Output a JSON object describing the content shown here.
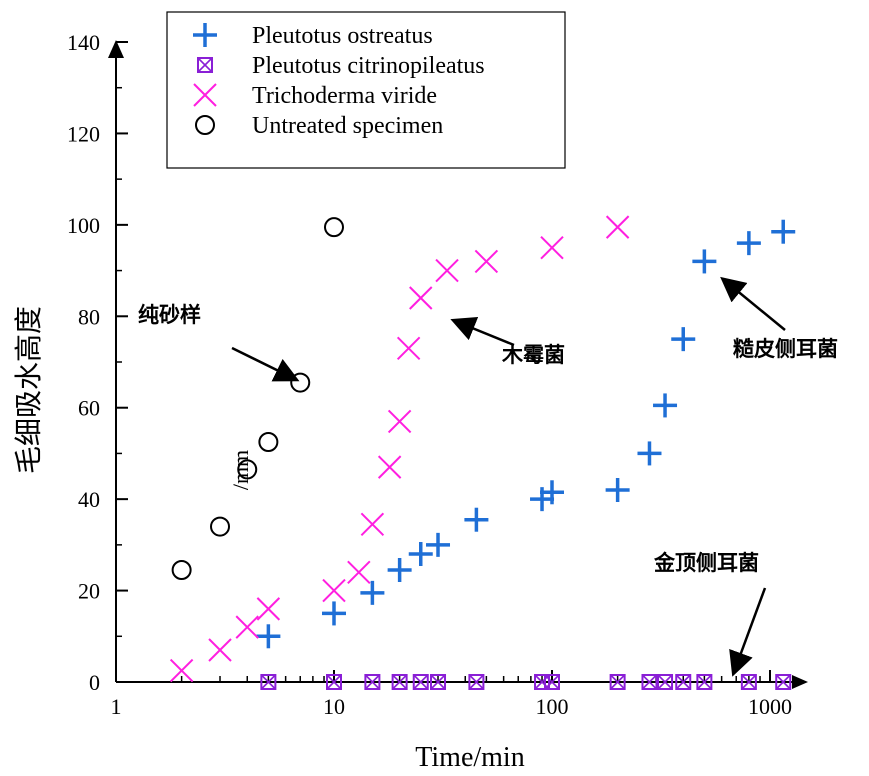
{
  "chart_data": {
    "type": "scatter",
    "xscale": "log",
    "xlabel": "Time/min",
    "ylabel": "毛细吸水高度",
    "ylabel_unit": "/mm",
    "xlim": [
      1,
      1300
    ],
    "ylim": [
      0,
      140
    ],
    "x_ticks": [
      1,
      10,
      100,
      1000
    ],
    "x_tick_labels": [
      "1",
      "10",
      "100",
      "1000"
    ],
    "y_ticks": [
      0,
      20,
      40,
      60,
      80,
      100,
      120,
      140
    ],
    "y_tick_labels": [
      "0",
      "20",
      "40",
      "60",
      "80",
      "100",
      "120",
      "140"
    ],
    "grid": false,
    "legend_position": "top-left",
    "series": [
      {
        "name": "Pleutotus ostreatus",
        "marker": "plus",
        "color": "#1f6fd6",
        "x": [
          5,
          10,
          15,
          20,
          25,
          30,
          45,
          90,
          100,
          200,
          280,
          330,
          400,
          500,
          800,
          1150
        ],
        "y": [
          10,
          15,
          19.5,
          24.5,
          28,
          30,
          35.5,
          40,
          41.5,
          42,
          50,
          60.5,
          75,
          92,
          96,
          98.5
        ]
      },
      {
        "name": "Pleutotus citrinopileatus",
        "marker": "box-x",
        "color": "#8a1fd6",
        "x": [
          5,
          10,
          15,
          20,
          25,
          30,
          45,
          90,
          100,
          200,
          280,
          330,
          400,
          500,
          800,
          1150
        ],
        "y": [
          0,
          0,
          0,
          0,
          0,
          0,
          0,
          0,
          0,
          0,
          0,
          0,
          0,
          0,
          0,
          0
        ]
      },
      {
        "name": "Trichoderma viride",
        "marker": "x",
        "color": "#ff1fe0",
        "x": [
          2,
          3,
          4,
          5,
          10,
          13,
          15,
          18,
          20,
          22,
          25,
          33,
          50,
          100,
          200
        ],
        "y": [
          2.5,
          7,
          12,
          16,
          20,
          24,
          34.5,
          47,
          57,
          73,
          84,
          90,
          92,
          95,
          99.5
        ]
      },
      {
        "name": "Untreated specimen",
        "marker": "circle",
        "color": "#000000",
        "x": [
          2,
          3,
          4,
          5,
          7,
          10
        ],
        "y": [
          24.5,
          34,
          46.5,
          52.5,
          65.5,
          99.5
        ]
      }
    ],
    "annotations": [
      {
        "text": "纯砂样"
      },
      {
        "text": "木霉菌"
      },
      {
        "text": "糙皮侧耳菌"
      },
      {
        "text": "金顶侧耳菌"
      }
    ]
  }
}
